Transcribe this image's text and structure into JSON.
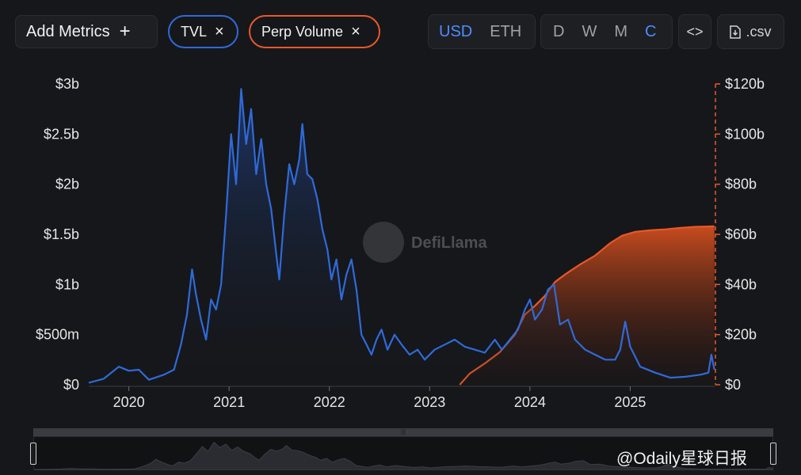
{
  "toolbar": {
    "add_metrics": "Add Metrics",
    "add_icon": "+",
    "tvl_pill": "TVL",
    "perp_pill": "Perp Volume",
    "close_icon": "×",
    "currency": [
      "USD",
      "ETH"
    ],
    "currency_active": "USD",
    "periods": [
      "D",
      "W",
      "M",
      "C"
    ],
    "period_active": "C",
    "embed_label": "<>",
    "csv_label": ".csv"
  },
  "watermark": "DefiLlama",
  "credit": "@Odaily星球日报",
  "colors": {
    "tvl": "#2f6ad9",
    "perp": "#e8582a",
    "background": "#16171a"
  },
  "chart_data": {
    "type": "line",
    "title": "",
    "xlabel": "",
    "x_ticks": [
      "2020",
      "2021",
      "2022",
      "2023",
      "2024",
      "2025"
    ],
    "y_left_ticks": [
      "$0",
      "$500m",
      "$1b",
      "$1.5b",
      "$2b",
      "$2.5b",
      "$3b"
    ],
    "y_right_ticks": [
      "$0",
      "$20b",
      "$40b",
      "$60b",
      "$80b",
      "$100b",
      "$120b"
    ],
    "ylim_left": [
      0,
      3
    ],
    "ylim_right": [
      0,
      120
    ],
    "xlim": [
      2019.6,
      2025.85
    ],
    "series": [
      {
        "name": "TVL",
        "unit": "billions USD",
        "axis": "left",
        "style": "area",
        "points": [
          [
            2019.6,
            0.02
          ],
          [
            2019.75,
            0.06
          ],
          [
            2019.9,
            0.18
          ],
          [
            2020.0,
            0.14
          ],
          [
            2020.1,
            0.15
          ],
          [
            2020.2,
            0.05
          ],
          [
            2020.35,
            0.1
          ],
          [
            2020.45,
            0.15
          ],
          [
            2020.52,
            0.4
          ],
          [
            2020.58,
            0.7
          ],
          [
            2020.63,
            1.15
          ],
          [
            2020.67,
            0.9
          ],
          [
            2020.72,
            0.65
          ],
          [
            2020.77,
            0.45
          ],
          [
            2020.82,
            0.85
          ],
          [
            2020.87,
            0.75
          ],
          [
            2020.92,
            1.0
          ],
          [
            2020.97,
            1.7
          ],
          [
            2021.02,
            2.5
          ],
          [
            2021.07,
            2.0
          ],
          [
            2021.12,
            2.95
          ],
          [
            2021.17,
            2.4
          ],
          [
            2021.22,
            2.75
          ],
          [
            2021.27,
            2.1
          ],
          [
            2021.32,
            2.45
          ],
          [
            2021.37,
            2.0
          ],
          [
            2021.42,
            1.75
          ],
          [
            2021.47,
            1.3
          ],
          [
            2021.5,
            1.05
          ],
          [
            2021.55,
            1.7
          ],
          [
            2021.6,
            2.2
          ],
          [
            2021.65,
            2.0
          ],
          [
            2021.7,
            2.25
          ],
          [
            2021.73,
            2.6
          ],
          [
            2021.78,
            2.1
          ],
          [
            2021.83,
            2.05
          ],
          [
            2021.88,
            1.85
          ],
          [
            2021.93,
            1.55
          ],
          [
            2021.98,
            1.35
          ],
          [
            2022.02,
            1.05
          ],
          [
            2022.07,
            1.25
          ],
          [
            2022.12,
            0.85
          ],
          [
            2022.17,
            1.1
          ],
          [
            2022.22,
            1.25
          ],
          [
            2022.27,
            0.95
          ],
          [
            2022.32,
            0.5
          ],
          [
            2022.37,
            0.4
          ],
          [
            2022.42,
            0.3
          ],
          [
            2022.47,
            0.45
          ],
          [
            2022.52,
            0.55
          ],
          [
            2022.58,
            0.35
          ],
          [
            2022.65,
            0.5
          ],
          [
            2022.72,
            0.4
          ],
          [
            2022.8,
            0.3
          ],
          [
            2022.88,
            0.35
          ],
          [
            2022.95,
            0.25
          ],
          [
            2023.05,
            0.35
          ],
          [
            2023.15,
            0.4
          ],
          [
            2023.25,
            0.45
          ],
          [
            2023.35,
            0.38
          ],
          [
            2023.45,
            0.35
          ],
          [
            2023.55,
            0.32
          ],
          [
            2023.65,
            0.45
          ],
          [
            2023.72,
            0.35
          ],
          [
            2023.8,
            0.45
          ],
          [
            2023.88,
            0.55
          ],
          [
            2023.95,
            0.75
          ],
          [
            2024.0,
            0.85
          ],
          [
            2024.05,
            0.65
          ],
          [
            2024.12,
            0.75
          ],
          [
            2024.18,
            0.95
          ],
          [
            2024.24,
            1.0
          ],
          [
            2024.3,
            0.6
          ],
          [
            2024.38,
            0.65
          ],
          [
            2024.45,
            0.45
          ],
          [
            2024.55,
            0.35
          ],
          [
            2024.65,
            0.3
          ],
          [
            2024.75,
            0.25
          ],
          [
            2024.85,
            0.25
          ],
          [
            2024.9,
            0.35
          ],
          [
            2024.95,
            0.63
          ],
          [
            2025.0,
            0.38
          ],
          [
            2025.1,
            0.18
          ],
          [
            2025.25,
            0.12
          ],
          [
            2025.4,
            0.07
          ],
          [
            2025.55,
            0.08
          ],
          [
            2025.7,
            0.1
          ],
          [
            2025.78,
            0.12
          ],
          [
            2025.81,
            0.3
          ],
          [
            2025.84,
            0.15
          ]
        ]
      },
      {
        "name": "Perp Volume",
        "unit": "billions USD",
        "axis": "right",
        "style": "area",
        "cumulative": true,
        "points": [
          [
            2023.3,
            0.0
          ],
          [
            2023.4,
            4.5
          ],
          [
            2023.55,
            8.5
          ],
          [
            2023.7,
            13.0
          ],
          [
            2023.85,
            20.0
          ],
          [
            2023.95,
            28.0
          ],
          [
            2024.05,
            31.5
          ],
          [
            2024.15,
            35.5
          ],
          [
            2024.25,
            41.0
          ],
          [
            2024.35,
            44.0
          ],
          [
            2024.5,
            48.0
          ],
          [
            2024.65,
            51.5
          ],
          [
            2024.8,
            56.5
          ],
          [
            2024.92,
            59.5
          ],
          [
            2025.05,
            61.0
          ],
          [
            2025.2,
            61.6
          ],
          [
            2025.35,
            62.0
          ],
          [
            2025.5,
            62.6
          ],
          [
            2025.65,
            63.0
          ],
          [
            2025.84,
            63.2
          ]
        ]
      }
    ]
  }
}
